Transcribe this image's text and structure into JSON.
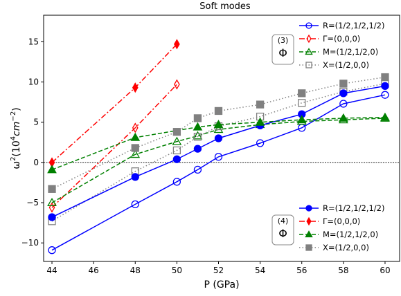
{
  "chart_data": {
    "type": "line",
    "title": "Soft modes",
    "xlabel": "P (GPa)",
    "ylabel_base": "ω",
    "ylabel_sup": "2",
    "ylabel_paren_open": "(10",
    "ylabel_sup2": "4",
    "ylabel_unit": "cm",
    "ylabel_sup3": "−2",
    "ylabel_paren_close": ")",
    "xlim": [
      43.6,
      60.7
    ],
    "ylim": [
      -12.3,
      18.3
    ],
    "xticks": [
      44,
      46,
      48,
      50,
      52,
      54,
      56,
      58,
      60
    ],
    "yticks": [
      -10,
      -5,
      0,
      5,
      10,
      15
    ],
    "xtick_labels": [
      "44",
      "46",
      "48",
      "50",
      "52",
      "54",
      "56",
      "58",
      "60"
    ],
    "ytick_labels": [
      "−10",
      "−5",
      "0",
      "5",
      "10",
      "15"
    ],
    "zero_line": true,
    "grid": false,
    "legend_open": {
      "location": "top-right",
      "box_number": "(3)",
      "box_symbol": "Φ",
      "entries": [
        "R=(1/2,1/2,1/2)",
        "Γ=(0,0,0)",
        "M=(1/2,1/2,0)",
        "X=(1/2,0,0)"
      ]
    },
    "legend_filled": {
      "location": "bottom-right",
      "box_number": "(4)",
      "box_symbol": "Φ",
      "entries": [
        "R=(1/2,1/2,1/2)",
        "Γ=(0,0,0)",
        "M=(1/2,1/2,0)",
        "X=(1/2,0,0)"
      ]
    },
    "series": [
      {
        "name": "R=(1/2,1/2,1/2)",
        "group": "(3)",
        "color": "#0000ff",
        "marker": "circle",
        "fill": "none",
        "dash": "solid",
        "x": [
          44,
          48,
          50,
          51,
          52,
          54,
          56,
          58,
          60
        ],
        "y": [
          -10.9,
          -5.2,
          -2.4,
          -0.9,
          0.7,
          2.4,
          4.3,
          7.3,
          8.4
        ]
      },
      {
        "name": "Γ=(0,0,0)",
        "group": "(3)",
        "color": "#ff0000",
        "marker": "thin_diamond",
        "fill": "none",
        "dash": "dashdot",
        "x": [
          44,
          48,
          50
        ],
        "y": [
          -5.6,
          4.3,
          9.7
        ]
      },
      {
        "name": "M=(1/2,1/2,0)",
        "group": "(3)",
        "color": "#008000",
        "marker": "triangle",
        "fill": "none",
        "dash": "dashed",
        "x": [
          44,
          48,
          50,
          51,
          52,
          54,
          56,
          58,
          60
        ],
        "y": [
          -5.0,
          1.0,
          2.6,
          3.3,
          4.1,
          4.7,
          5.1,
          5.3,
          5.5
        ]
      },
      {
        "name": "X=(1/2,0,0)",
        "group": "(3)",
        "color": "#808080",
        "marker": "square",
        "fill": "none",
        "dash": "dotted",
        "x": [
          44,
          48,
          50,
          51,
          52,
          54,
          56,
          58,
          60
        ],
        "y": [
          -7.3,
          -1.1,
          1.5,
          3.2,
          4.5,
          5.7,
          7.4,
          8.8,
          9.8
        ]
      },
      {
        "name": "R=(1/2,1/2,1/2)",
        "group": "(4)",
        "color": "#0000ff",
        "marker": "circle",
        "fill": "solid",
        "dash": "solid",
        "x": [
          44,
          48,
          50,
          51,
          52,
          54,
          56,
          58,
          60
        ],
        "y": [
          -6.8,
          -1.8,
          0.4,
          1.7,
          3.0,
          4.6,
          6.0,
          8.6,
          9.5
        ]
      },
      {
        "name": "Γ=(0,0,0)",
        "group": "(4)",
        "color": "#ff0000",
        "marker": "thin_diamond",
        "fill": "solid",
        "dash": "dashdot",
        "x": [
          44,
          48,
          50
        ],
        "y": [
          0.0,
          9.3,
          14.7
        ]
      },
      {
        "name": "M=(1/2,1/2,0)",
        "group": "(4)",
        "color": "#008000",
        "marker": "triangle",
        "fill": "solid",
        "dash": "dashed",
        "x": [
          44,
          48,
          51,
          52,
          54,
          56,
          58,
          60
        ],
        "y": [
          -0.9,
          3.1,
          4.4,
          4.7,
          5.0,
          5.3,
          5.5,
          5.6
        ]
      },
      {
        "name": "X=(1/2,0,0)",
        "group": "(4)",
        "color": "#808080",
        "marker": "square",
        "fill": "solid",
        "dash": "dotted",
        "x": [
          44,
          48,
          50,
          51,
          52,
          54,
          56,
          58,
          60
        ],
        "y": [
          -3.3,
          1.8,
          3.8,
          5.5,
          6.4,
          7.2,
          8.6,
          9.8,
          10.6
        ]
      }
    ]
  }
}
